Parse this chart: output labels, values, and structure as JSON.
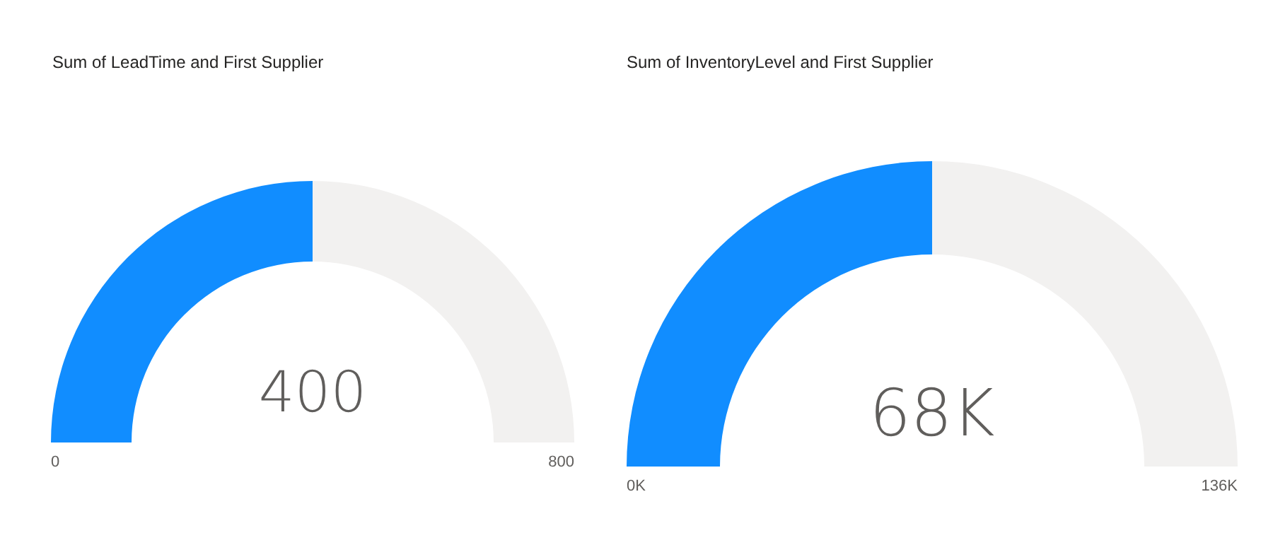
{
  "chart_data": [
    {
      "type": "donut",
      "title": "Sum of LeadTime and First Supplier",
      "categories": [
        null,
        null
      ],
      "values": [
        400,
        400
      ],
      "colors": [
        "#118dff",
        "#f2f1f0"
      ],
      "value_labels": [
        "400",
        null
      ],
      "annotations": [
        "0",
        "800"
      ]
    },
    {
      "type": "donut",
      "title": "Sum of InventoryLevel and First Supplier",
      "categories": [
        null,
        null
      ],
      "values": [
        68000,
        68000
      ],
      "colors": [
        "#118dff",
        "#f2f1f0"
      ],
      "value_labels": [
        "68K",
        null
      ],
      "annotations": [
        "0K",
        "136K"
      ]
    }
  ]
}
